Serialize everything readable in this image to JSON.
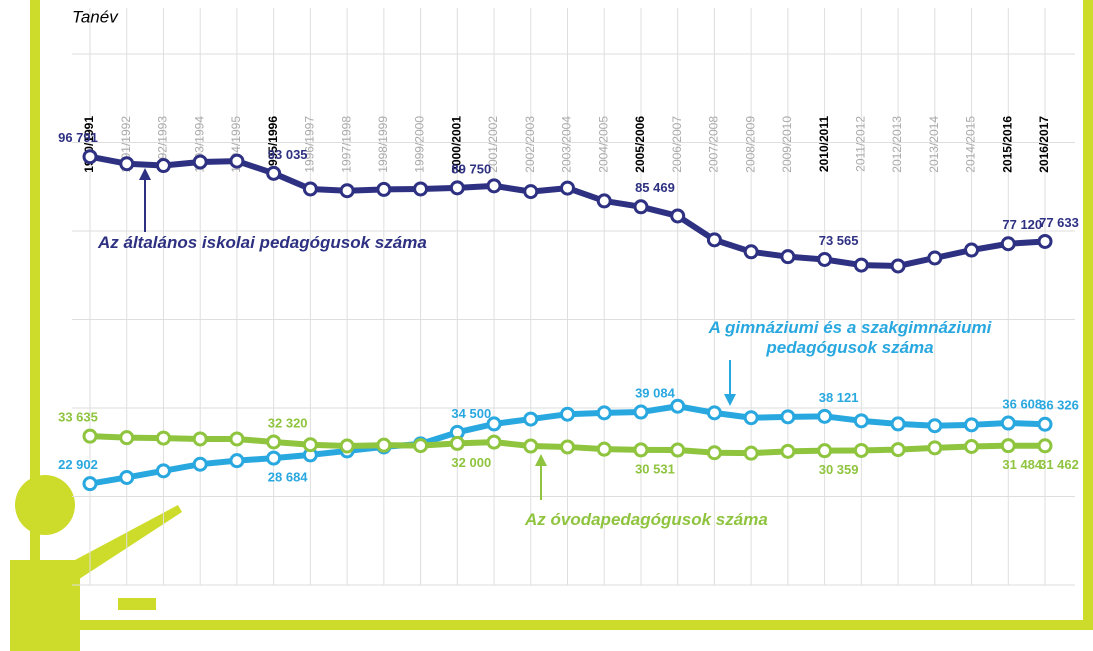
{
  "chart_data": {
    "type": "line",
    "x_label": "Tanév",
    "categories": [
      "1990/1991",
      "1991/1992",
      "1992/1993",
      "1993/1994",
      "1994/1995",
      "1995/1996",
      "1996/1997",
      "1997/1998",
      "1998/1999",
      "1999/2000",
      "2000/2001",
      "2001/2002",
      "2002/2003",
      "2003/2004",
      "2004/2005",
      "2005/2006",
      "2006/2007",
      "2007/2008",
      "2008/2009",
      "2009/2010",
      "2010/2011",
      "2011/2012",
      "2012/2013",
      "2013/2014",
      "2014/2015",
      "2015/2016",
      "2016/2017"
    ],
    "ylim": [
      0,
      120000
    ],
    "yticks": [
      0,
      20000,
      40000,
      60000,
      80000,
      100000,
      120000
    ],
    "grid": true,
    "series": [
      {
        "name": "Az általános iskolai pedagógusok száma",
        "color": "#2e3182",
        "values": [
          96791,
          95200,
          94800,
          95600,
          95800,
          93035,
          89500,
          89100,
          89400,
          89500,
          89750,
          90200,
          88900,
          89700,
          86800,
          85469,
          83400,
          78000,
          75300,
          74200,
          73565,
          72300,
          72100,
          73900,
          75700,
          77120,
          77633
        ],
        "value_labels": [
          "96 791",
          null,
          null,
          null,
          null,
          "93 035",
          null,
          null,
          null,
          null,
          "89 750",
          null,
          null,
          null,
          null,
          "85 469",
          null,
          null,
          null,
          null,
          "73 565",
          null,
          null,
          null,
          null,
          "77 120",
          "77 633"
        ]
      },
      {
        "name": "A gimnáziumi és a szakgimnáziumi pedagógusok száma",
        "color": "#29a8e0",
        "values": [
          22902,
          24300,
          25800,
          27300,
          28100,
          28684,
          29400,
          30300,
          31200,
          31900,
          34500,
          36400,
          37500,
          38600,
          38900,
          39084,
          40400,
          38900,
          37800,
          38000,
          38121,
          37100,
          36400,
          36000,
          36200,
          36608,
          36326
        ],
        "value_labels": [
          "22 902",
          null,
          null,
          null,
          null,
          "28 684",
          null,
          null,
          null,
          null,
          "34 500",
          null,
          null,
          null,
          null,
          "39 084",
          null,
          null,
          null,
          null,
          "38 121",
          null,
          null,
          null,
          null,
          "36 608",
          "36 326"
        ]
      },
      {
        "name": "Az óvodapedagógusok száma",
        "color": "#8fc43f",
        "values": [
          33635,
          33300,
          33200,
          33000,
          33000,
          32320,
          31700,
          31400,
          31600,
          31500,
          32000,
          32300,
          31400,
          31200,
          30700,
          30531,
          30500,
          29900,
          29800,
          30200,
          30359,
          30400,
          30600,
          31000,
          31300,
          31484,
          31462
        ],
        "value_labels": [
          "33 635",
          null,
          null,
          null,
          null,
          "32 320",
          null,
          null,
          null,
          null,
          "32 000",
          null,
          null,
          null,
          null,
          "30 531",
          null,
          null,
          null,
          null,
          "30 359",
          null,
          null,
          null,
          null,
          "31 484",
          "31 462"
        ]
      }
    ]
  }
}
